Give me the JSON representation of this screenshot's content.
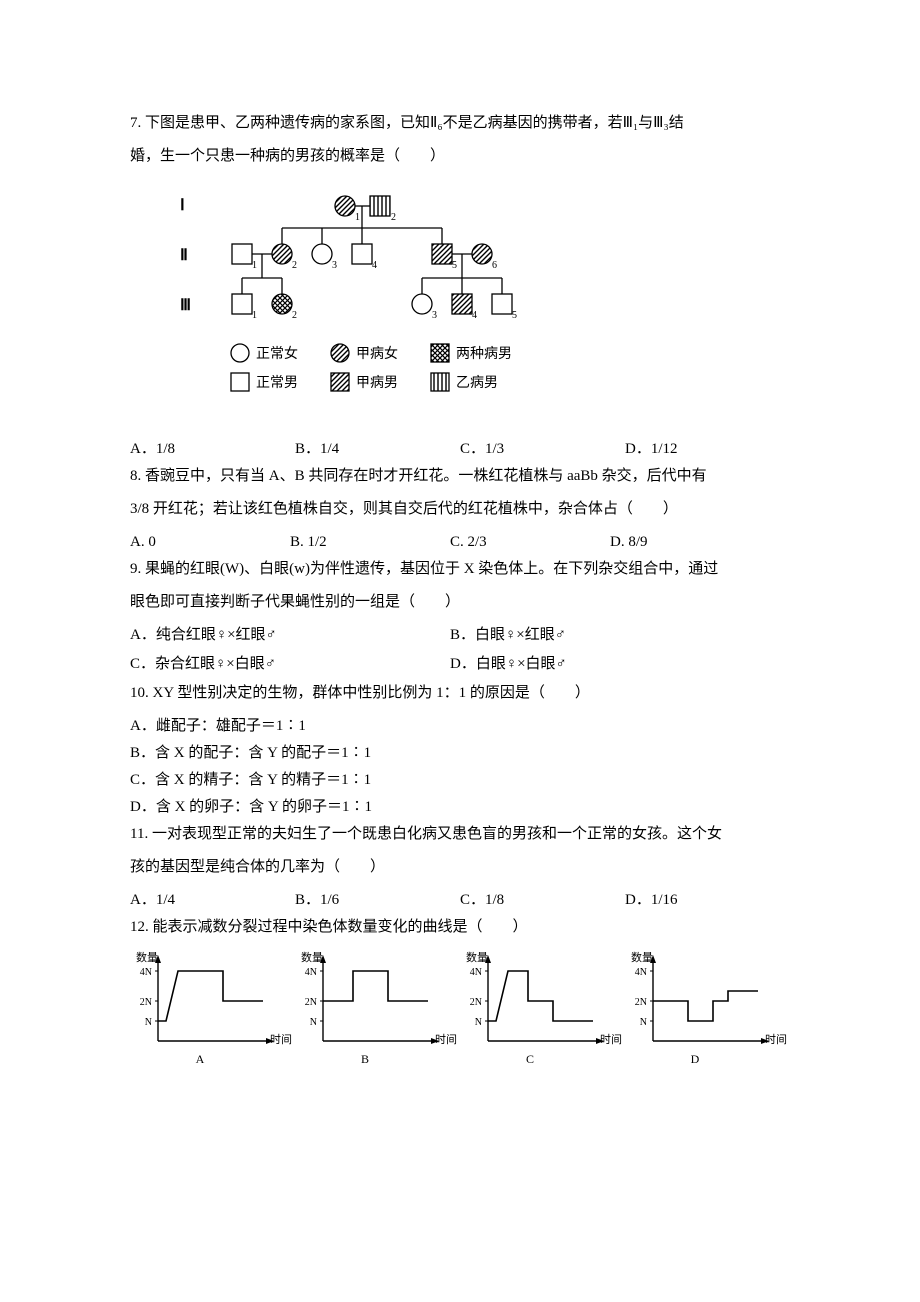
{
  "q7": {
    "stem1": "7. 下图是患甲、乙两种遗传病的家系图，已知Ⅱ₆不是乙病基因的携带者，若Ⅲ₁与Ⅲ₃结",
    "stem2": "婚，生一个只患一种病的男孩的概率是（　　）",
    "A": "A．1/8",
    "B": "B．1/4",
    "C": "C．1/3",
    "D": "D．1/12",
    "pedigree": {
      "gen_labels": [
        "Ⅰ",
        "Ⅱ",
        "Ⅲ"
      ],
      "legend": {
        "normal_f": "正常女",
        "normal_m": "正常男",
        "a_f": "甲病女",
        "a_m": "甲病男",
        "both_m": "两种病男",
        "b_m": "乙病男"
      }
    }
  },
  "q8": {
    "stem1": "8. 香豌豆中，只有当 A、B 共同存在时才开红花。一株红花植株与 aaBb 杂交，后代中有",
    "stem2": "3/8 开红花；若让该红色植株自交，则其自交后代的红花植株中，杂合体占（　　）",
    "A": "A. 0",
    "B": "B. 1/2",
    "C": "C. 2/3",
    "D": "D. 8/9"
  },
  "q9": {
    "stem1": "9. 果蝇的红眼(W)、白眼(w)为伴性遗传，基因位于 X 染色体上。在下列杂交组合中，通过",
    "stem2": "眼色即可直接判断子代果蝇性别的一组是（　　）",
    "A": "A．纯合红眼♀×红眼♂",
    "B": "B．白眼♀×红眼♂",
    "C": "C．杂合红眼♀×白眼♂",
    "D": "D．白眼♀×白眼♂"
  },
  "q10": {
    "stem": "10. XY 型性别决定的生物，群体中性别比例为 1：1 的原因是（　　）",
    "A": "A．雌配子：雄配子＝1∶1",
    "B": "B．含 X 的配子：含 Y 的配子＝1∶1",
    "C": "C．含 X 的精子：含 Y 的精子＝1∶1",
    "D": "D．含 X 的卵子：含 Y 的卵子＝1∶1"
  },
  "q11": {
    "stem1": "11. 一对表现型正常的夫妇生了一个既患白化病又患色盲的男孩和一个正常的女孩。这个女",
    "stem2": "孩的基因型是纯合体的几率为（　　）",
    "A": "A．1/4",
    "B": "B．1/6",
    "C": "C．1/8",
    "D": "D．1/16"
  },
  "q12": {
    "stem": "12. 能表示减数分裂过程中染色体数量变化的曲线是（　　）",
    "axis": {
      "ylabel": "数量",
      "xlabel": "时间",
      "yticks": [
        "4N",
        "2N",
        "N"
      ]
    },
    "labels": [
      "A",
      "B",
      "C",
      "D"
    ],
    "graphs": {
      "A": {
        "type": "line",
        "pts": [
          [
            10,
            70
          ],
          [
            18,
            70
          ],
          [
            30,
            20
          ],
          [
            75,
            20
          ],
          [
            75,
            50
          ],
          [
            115,
            50
          ]
        ]
      },
      "B": {
        "type": "line",
        "pts": [
          [
            10,
            50
          ],
          [
            40,
            50
          ],
          [
            40,
            20
          ],
          [
            75,
            20
          ],
          [
            75,
            50
          ],
          [
            115,
            50
          ]
        ]
      },
      "C": {
        "type": "line",
        "pts": [
          [
            10,
            70
          ],
          [
            18,
            70
          ],
          [
            30,
            20
          ],
          [
            50,
            20
          ],
          [
            50,
            50
          ],
          [
            75,
            50
          ],
          [
            75,
            70
          ],
          [
            115,
            70
          ]
        ]
      },
      "D": {
        "type": "line",
        "pts": [
          [
            10,
            50
          ],
          [
            45,
            50
          ],
          [
            45,
            70
          ],
          [
            70,
            70
          ],
          [
            70,
            50
          ],
          [
            85,
            50
          ],
          [
            85,
            40
          ],
          [
            115,
            40
          ]
        ]
      }
    },
    "colors": {
      "axis": "#000000",
      "line": "#000000",
      "text": "#000000",
      "bg": "#ffffff"
    }
  }
}
